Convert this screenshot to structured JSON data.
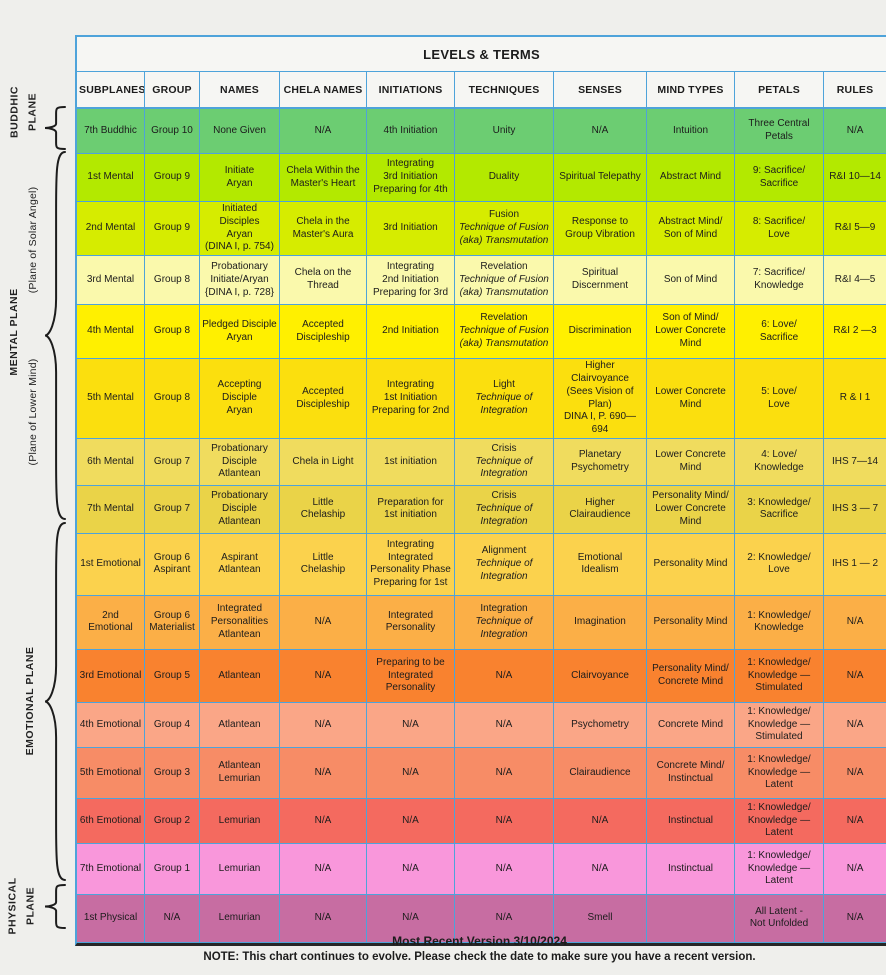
{
  "title": "LEVELS & TERMS",
  "columns": [
    "SUBPLANES",
    "GROUP",
    "NAMES",
    "CHELA NAMES",
    "INITIATIONS",
    "TECHNIQUES",
    "SENSES",
    "MIND TYPES",
    "PETALS",
    "RULES"
  ],
  "side_labels": {
    "buddhic": {
      "line1": "BUDDHIC",
      "line2": "PLANE"
    },
    "mental": {
      "label": "MENTAL PLANE",
      "sub_top": "(Plane of Solar Angel)",
      "sub_bottom": "(Plane of Lower Mind)"
    },
    "emotional": {
      "label": "EMOTIONAL PLANE"
    },
    "physical": {
      "line1": "PHYSICAL",
      "line2": "PLANE"
    }
  },
  "colors": {
    "grid_border": "#4EA3DA",
    "outer_bottom_border": "#262626",
    "header_bg": "#F6F6F3",
    "page_bg": "#EFEFEC",
    "row_colors": [
      "#6CCD72",
      "#B3E900",
      "#D6EC00",
      "#FAF9AC",
      "#FFF000",
      "#FBDF0E",
      "#F0DC5E",
      "#EAD348",
      "#FBD24D",
      "#FBAF47",
      "#F9822F",
      "#FAA687",
      "#F78C66",
      "#F46A5F",
      "#F997DB",
      "#C76DA2"
    ]
  },
  "rows": [
    {
      "plane": "buddhic",
      "cells": [
        [
          "7th Buddhic"
        ],
        [
          "Group 10"
        ],
        [
          "None Given"
        ],
        [
          "N/A"
        ],
        [
          "4th Initiation"
        ],
        [
          "Unity"
        ],
        [
          "N/A"
        ],
        [
          "Intuition"
        ],
        [
          "Three Central",
          "Petals"
        ],
        [
          "N/A"
        ]
      ]
    },
    {
      "plane": "mental",
      "cells": [
        [
          "1st Mental"
        ],
        [
          "Group 9"
        ],
        [
          "Initiate",
          "Aryan"
        ],
        [
          "Chela Within the",
          "Master's Heart"
        ],
        [
          "Integrating",
          "3rd Initiation",
          "Preparing for 4th"
        ],
        [
          "Duality"
        ],
        [
          "Spiritual Telepathy"
        ],
        [
          "Abstract Mind"
        ],
        [
          "9: Sacrifice/",
          "Sacrifice"
        ],
        [
          "R&I  10—14"
        ]
      ]
    },
    {
      "plane": "mental",
      "cells": [
        [
          "2nd Mental"
        ],
        [
          "Group 9"
        ],
        [
          "Initiated Disciples",
          "Aryan",
          "(DINA I, p. 754)"
        ],
        [
          "Chela in the",
          "Master's Aura"
        ],
        [
          "3rd Initiation"
        ],
        [
          "Fusion",
          {
            "t": "Technique of Fusion",
            "i": true
          },
          {
            "t": "(aka) Transmutation",
            "i": true
          }
        ],
        [
          "Response to",
          "Group Vibration"
        ],
        [
          "Abstract Mind/",
          "Son of Mind"
        ],
        [
          "8: Sacrifice/",
          "Love"
        ],
        [
          "R&I  5—9"
        ]
      ]
    },
    {
      "plane": "mental",
      "cells": [
        [
          "3rd Mental"
        ],
        [
          "Group 8"
        ],
        [
          "Probationary",
          "Initiate/Aryan",
          "{DINA I, p. 728}"
        ],
        [
          "Chela on the",
          "Thread"
        ],
        [
          "Integrating",
          "2nd Initiation",
          "Preparing for 3rd"
        ],
        [
          "Revelation",
          {
            "t": "Technique of Fusion",
            "i": true
          },
          {
            "t": "(aka) Transmutation",
            "i": true
          }
        ],
        [
          "Spiritual",
          "Discernment"
        ],
        [
          "Son of Mind"
        ],
        [
          "7: Sacrifice/",
          "Knowledge"
        ],
        [
          "R&I  4—5"
        ]
      ]
    },
    {
      "plane": "mental",
      "cells": [
        [
          "4th Mental"
        ],
        [
          "Group 8"
        ],
        [
          "Pledged Disciple",
          "Aryan"
        ],
        [
          "Accepted",
          "Discipleship"
        ],
        [
          "2nd Initiation"
        ],
        [
          "Revelation",
          {
            "t": "Technique of Fusion",
            "i": true
          },
          {
            "t": "(aka) Transmutation",
            "i": true
          }
        ],
        [
          "Discrimination"
        ],
        [
          "Son of Mind/",
          "Lower Concrete",
          "Mind"
        ],
        [
          "6: Love/",
          "Sacrifice"
        ],
        [
          "R&I  2 —3"
        ]
      ]
    },
    {
      "plane": "mental",
      "cells": [
        [
          "5th Mental"
        ],
        [
          "Group 8"
        ],
        [
          "Accepting",
          "Disciple",
          "Aryan"
        ],
        [
          "Accepted",
          "Discipleship"
        ],
        [
          "Integrating",
          "1st Initiation",
          "Preparing for 2nd"
        ],
        [
          "Light",
          {
            "t": "Technique of",
            "i": true
          },
          {
            "t": "Integration",
            "i": true
          }
        ],
        [
          "Higher",
          "Clairvoyance",
          "(Sees Vision of Plan)",
          "DINA I, P. 690—694"
        ],
        [
          "Lower Concrete",
          "Mind"
        ],
        [
          "5: Love/",
          "Love"
        ],
        [
          "R & I  1"
        ]
      ]
    },
    {
      "plane": "mental",
      "cells": [
        [
          "6th Mental"
        ],
        [
          "Group 7"
        ],
        [
          "Probationary",
          "Disciple",
          "Atlantean"
        ],
        [
          "Chela in  Light"
        ],
        [
          "1st initiation"
        ],
        [
          "Crisis",
          {
            "t": "Technique of",
            "i": true
          },
          {
            "t": "Integration",
            "i": true
          }
        ],
        [
          "Planetary",
          "Psychometry"
        ],
        [
          "Lower Concrete",
          "Mind"
        ],
        [
          "4: Love/",
          "Knowledge"
        ],
        [
          "IHS  7—14"
        ]
      ]
    },
    {
      "plane": "mental",
      "cells": [
        [
          "7th Mental"
        ],
        [
          "Group 7"
        ],
        [
          "Probationary",
          "Disciple",
          "Atlantean"
        ],
        [
          "Little",
          "Chelaship"
        ],
        [
          "Preparation for",
          "1st initiation"
        ],
        [
          "Crisis",
          {
            "t": "Technique of",
            "i": true
          },
          {
            "t": "Integration",
            "i": true
          }
        ],
        [
          "Higher",
          "Clairaudience"
        ],
        [
          "Personality Mind/",
          "Lower Concrete",
          "Mind"
        ],
        [
          "3: Knowledge/",
          "Sacrifice"
        ],
        [
          "IHS  3 — 7"
        ]
      ]
    },
    {
      "plane": "emotional",
      "cells": [
        [
          "1st Emotional"
        ],
        [
          "Group 6",
          "Aspirant"
        ],
        [
          "Aspirant",
          "Atlantean"
        ],
        [
          "Little",
          "Chelaship"
        ],
        [
          "Integrating",
          "Integrated",
          "Personality Phase",
          "Preparing for 1st"
        ],
        [
          "Alignment",
          {
            "t": "Technique of",
            "i": true
          },
          {
            "t": "Integration",
            "i": true
          }
        ],
        [
          "Emotional",
          "Idealism"
        ],
        [
          "Personality Mind"
        ],
        [
          "2: Knowledge/",
          "Love"
        ],
        [
          "IHS  1 — 2"
        ]
      ]
    },
    {
      "plane": "emotional",
      "cells": [
        [
          "2nd Emotional"
        ],
        [
          "Group 6",
          "Materialist"
        ],
        [
          "Integrated",
          "Personalities",
          "Atlantean"
        ],
        [
          "N/A"
        ],
        [
          "Integrated",
          "Personality"
        ],
        [
          "Integration",
          {
            "t": "Technique of",
            "i": true
          },
          {
            "t": "Integration",
            "i": true
          }
        ],
        [
          "Imagination"
        ],
        [
          "Personality Mind"
        ],
        [
          "1: Knowledge/",
          "Knowledge"
        ],
        [
          "N/A"
        ]
      ]
    },
    {
      "plane": "emotional",
      "cells": [
        [
          "3rd Emotional"
        ],
        [
          "Group 5"
        ],
        [
          "Atlantean"
        ],
        [
          "N/A"
        ],
        [
          "Preparing to be",
          "Integrated",
          "Personality"
        ],
        [
          "N/A"
        ],
        [
          "Clairvoyance"
        ],
        [
          "Personality Mind/",
          "Concrete Mind"
        ],
        [
          "1: Knowledge/",
          "Knowledge —",
          "Stimulated"
        ],
        [
          "N/A"
        ]
      ]
    },
    {
      "plane": "emotional",
      "cells": [
        [
          "4th Emotional"
        ],
        [
          "Group 4"
        ],
        [
          "Atlantean"
        ],
        [
          "N/A"
        ],
        [
          "N/A"
        ],
        [
          "N/A"
        ],
        [
          "Psychometry"
        ],
        [
          "Concrete Mind"
        ],
        [
          "1: Knowledge/",
          "Knowledge —",
          "Stimulated"
        ],
        [
          "N/A"
        ]
      ]
    },
    {
      "plane": "emotional",
      "cells": [
        [
          "5th Emotional"
        ],
        [
          "Group 3"
        ],
        [
          "Atlantean",
          "Lemurian"
        ],
        [
          "N/A"
        ],
        [
          "N/A"
        ],
        [
          "N/A"
        ],
        [
          "Clairaudience"
        ],
        [
          "Concrete Mind/",
          "Instinctual"
        ],
        [
          "1: Knowledge/",
          "Knowledge —",
          "Latent"
        ],
        [
          "N/A"
        ]
      ]
    },
    {
      "plane": "emotional",
      "cells": [
        [
          "6th Emotional"
        ],
        [
          "Group 2"
        ],
        [
          "Lemurian"
        ],
        [
          "N/A"
        ],
        [
          "N/A"
        ],
        [
          "N/A"
        ],
        [
          "N/A"
        ],
        [
          "Instinctual"
        ],
        [
          "1: Knowledge/",
          "Knowledge —",
          "Latent"
        ],
        [
          "N/A"
        ]
      ]
    },
    {
      "plane": "emotional",
      "cells": [
        [
          "7th Emotional"
        ],
        [
          "Group 1"
        ],
        [
          "Lemurian"
        ],
        [
          "N/A"
        ],
        [
          "N/A"
        ],
        [
          "N/A"
        ],
        [
          "N/A"
        ],
        [
          "Instinctual"
        ],
        [
          "1: Knowledge/",
          "Knowledge —",
          "Latent"
        ],
        [
          "N/A"
        ]
      ]
    },
    {
      "plane": "physical",
      "cells": [
        [
          "1st Physical"
        ],
        [
          "N/A"
        ],
        [
          "Lemurian"
        ],
        [
          "N/A"
        ],
        [
          "N/A"
        ],
        [
          "N/A"
        ],
        [
          "Smell"
        ],
        [],
        [
          "All Latent -",
          "Not Unfolded"
        ],
        [
          "N/A"
        ]
      ]
    }
  ],
  "footer": {
    "version_line": "Most Recent Version  3/10/2024",
    "note_line": "NOTE: This chart continues to evolve.  Please check the date to make sure you have a recent version."
  }
}
